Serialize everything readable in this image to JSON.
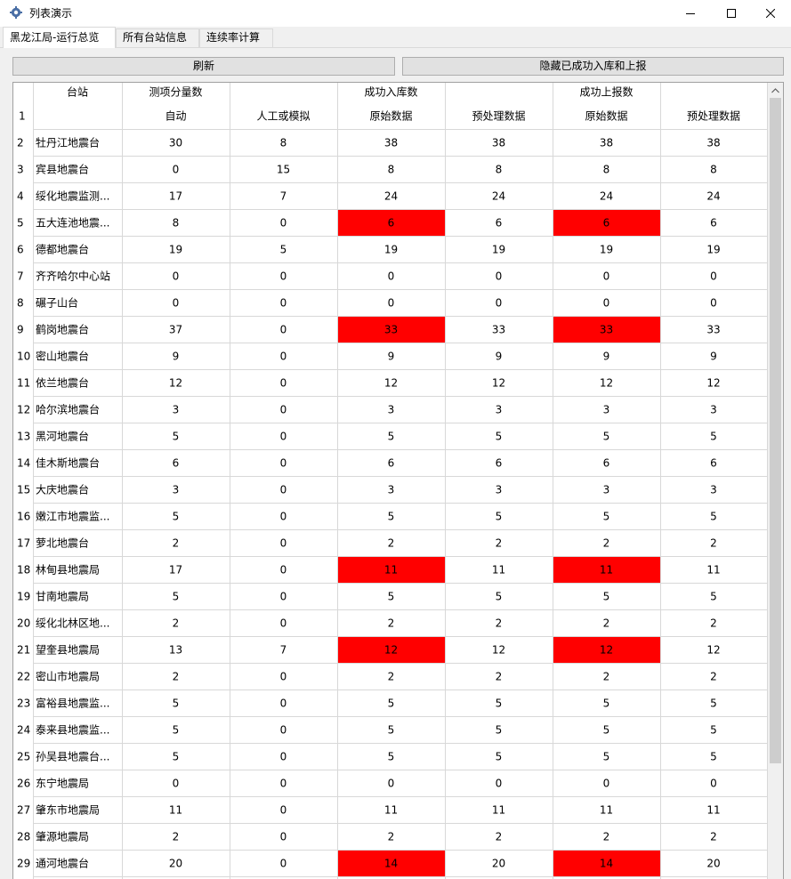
{
  "window": {
    "title": "列表演示",
    "controls": [
      "minimize-icon",
      "maximize-icon",
      "close-icon"
    ]
  },
  "tabs": [
    {
      "label": "黑龙江局-运行总览",
      "active": true
    },
    {
      "label": "所有台站信息",
      "active": false
    },
    {
      "label": "连续率计算",
      "active": false
    }
  ],
  "toolbar": {
    "refresh_label": "刷新",
    "hide_label": "隐藏已成功入库和上报"
  },
  "colors": {
    "highlight": "#ff0000",
    "grid_line": "#d8d8d8",
    "frame": "#a0a0a0"
  },
  "table": {
    "group_headers": {
      "station": "台站",
      "measure_count": "测项分量数",
      "stored": "成功入库数",
      "reported": "成功上报数"
    },
    "sub_header_row_number": "1",
    "sub_headers": [
      "",
      "自动",
      "人工或模拟",
      "原始数据",
      "预处理数据",
      "原始数据",
      "预处理数据"
    ],
    "highlighted_columns": [
      3,
      5
    ],
    "rows": [
      {
        "n": "2",
        "cells": [
          "牡丹江地震台",
          "30",
          "8",
          "38",
          "38",
          "38",
          "38"
        ],
        "highlight": false
      },
      {
        "n": "3",
        "cells": [
          "宾县地震台",
          "0",
          "15",
          "8",
          "8",
          "8",
          "8"
        ],
        "highlight": false
      },
      {
        "n": "4",
        "cells": [
          "绥化地震监测...",
          "17",
          "7",
          "24",
          "24",
          "24",
          "24"
        ],
        "highlight": false
      },
      {
        "n": "5",
        "cells": [
          "五大连池地震...",
          "8",
          "0",
          "6",
          "6",
          "6",
          "6"
        ],
        "highlight": true
      },
      {
        "n": "6",
        "cells": [
          "德都地震台",
          "19",
          "5",
          "19",
          "19",
          "19",
          "19"
        ],
        "highlight": false
      },
      {
        "n": "7",
        "cells": [
          "齐齐哈尔中心站",
          "0",
          "0",
          "0",
          "0",
          "0",
          "0"
        ],
        "highlight": false
      },
      {
        "n": "8",
        "cells": [
          "碾子山台",
          "0",
          "0",
          "0",
          "0",
          "0",
          "0"
        ],
        "highlight": false
      },
      {
        "n": "9",
        "cells": [
          "鹤岗地震台",
          "37",
          "0",
          "33",
          "33",
          "33",
          "33"
        ],
        "highlight": true
      },
      {
        "n": "10",
        "cells": [
          "密山地震台",
          "9",
          "0",
          "9",
          "9",
          "9",
          "9"
        ],
        "highlight": false
      },
      {
        "n": "11",
        "cells": [
          "依兰地震台",
          "12",
          "0",
          "12",
          "12",
          "12",
          "12"
        ],
        "highlight": false
      },
      {
        "n": "12",
        "cells": [
          "哈尔滨地震台",
          "3",
          "0",
          "3",
          "3",
          "3",
          "3"
        ],
        "highlight": false
      },
      {
        "n": "13",
        "cells": [
          "黑河地震台",
          "5",
          "0",
          "5",
          "5",
          "5",
          "5"
        ],
        "highlight": false
      },
      {
        "n": "14",
        "cells": [
          "佳木斯地震台",
          "6",
          "0",
          "6",
          "6",
          "6",
          "6"
        ],
        "highlight": false
      },
      {
        "n": "15",
        "cells": [
          "大庆地震台",
          "3",
          "0",
          "3",
          "3",
          "3",
          "3"
        ],
        "highlight": false
      },
      {
        "n": "16",
        "cells": [
          "嫩江市地震监...",
          "5",
          "0",
          "5",
          "5",
          "5",
          "5"
        ],
        "highlight": false
      },
      {
        "n": "17",
        "cells": [
          "萝北地震台",
          "2",
          "0",
          "2",
          "2",
          "2",
          "2"
        ],
        "highlight": false
      },
      {
        "n": "18",
        "cells": [
          "林甸县地震局",
          "17",
          "0",
          "11",
          "11",
          "11",
          "11"
        ],
        "highlight": true
      },
      {
        "n": "19",
        "cells": [
          "甘南地震局",
          "5",
          "0",
          "5",
          "5",
          "5",
          "5"
        ],
        "highlight": false
      },
      {
        "n": "20",
        "cells": [
          "绥化北林区地...",
          "2",
          "0",
          "2",
          "2",
          "2",
          "2"
        ],
        "highlight": false
      },
      {
        "n": "21",
        "cells": [
          "望奎县地震局",
          "13",
          "7",
          "12",
          "12",
          "12",
          "12"
        ],
        "highlight": true
      },
      {
        "n": "22",
        "cells": [
          "密山市地震局",
          "2",
          "0",
          "2",
          "2",
          "2",
          "2"
        ],
        "highlight": false
      },
      {
        "n": "23",
        "cells": [
          "富裕县地震监...",
          "5",
          "0",
          "5",
          "5",
          "5",
          "5"
        ],
        "highlight": false
      },
      {
        "n": "24",
        "cells": [
          "泰来县地震监...",
          "5",
          "0",
          "5",
          "5",
          "5",
          "5"
        ],
        "highlight": false
      },
      {
        "n": "25",
        "cells": [
          "孙吴县地震台...",
          "5",
          "0",
          "5",
          "5",
          "5",
          "5"
        ],
        "highlight": false
      },
      {
        "n": "26",
        "cells": [
          "东宁地震局",
          "0",
          "0",
          "0",
          "0",
          "0",
          "0"
        ],
        "highlight": false
      },
      {
        "n": "27",
        "cells": [
          "肇东市地震局",
          "11",
          "0",
          "11",
          "11",
          "11",
          "11"
        ],
        "highlight": false
      },
      {
        "n": "28",
        "cells": [
          "肇源地震局",
          "2",
          "0",
          "2",
          "2",
          "2",
          "2"
        ],
        "highlight": false
      },
      {
        "n": "29",
        "cells": [
          "通河地震台",
          "20",
          "0",
          "14",
          "20",
          "14",
          "20"
        ],
        "highlight": true
      }
    ]
  }
}
